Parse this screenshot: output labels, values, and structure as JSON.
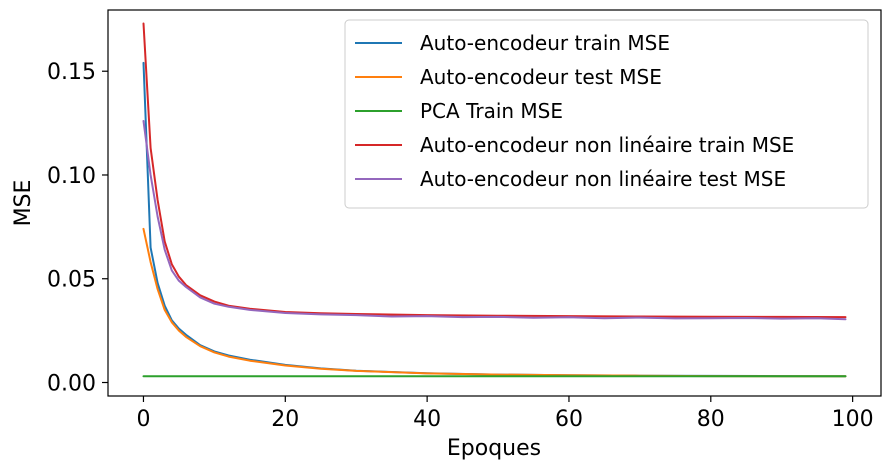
{
  "chart_data": {
    "type": "line",
    "title": "",
    "xlabel": "Epoques",
    "ylabel": "MSE",
    "xlim": [
      -5,
      104
    ],
    "ylim": [
      -0.0065,
      0.1795
    ],
    "xticks": [
      0,
      20,
      40,
      60,
      80,
      100
    ],
    "yticks": [
      0.0,
      0.05,
      0.1,
      0.15
    ],
    "xtick_labels": [
      "0",
      "20",
      "40",
      "60",
      "80",
      "100"
    ],
    "ytick_labels": [
      "0.00",
      "0.05",
      "0.10",
      "0.15"
    ],
    "grid": false,
    "legend_position": "upper right",
    "series": [
      {
        "name": "Auto-encodeur train MSE",
        "color": "#1f77b4",
        "x": [
          0,
          1,
          2,
          3,
          4,
          5,
          6,
          8,
          10,
          12,
          15,
          20,
          25,
          30,
          40,
          50,
          60,
          70,
          80,
          90,
          99
        ],
        "y": [
          0.154,
          0.065,
          0.048,
          0.037,
          0.03,
          0.026,
          0.023,
          0.018,
          0.015,
          0.013,
          0.011,
          0.0085,
          0.0068,
          0.0057,
          0.0045,
          0.0038,
          0.0035,
          0.0033,
          0.0032,
          0.0031,
          0.003
        ]
      },
      {
        "name": "Auto-encodeur test MSE",
        "color": "#ff7f0e",
        "x": [
          0,
          1,
          2,
          3,
          4,
          5,
          6,
          8,
          10,
          12,
          15,
          20,
          25,
          30,
          40,
          50,
          60,
          70,
          80,
          90,
          99
        ],
        "y": [
          0.074,
          0.058,
          0.045,
          0.035,
          0.029,
          0.025,
          0.022,
          0.0175,
          0.0145,
          0.0125,
          0.0105,
          0.0082,
          0.0066,
          0.0056,
          0.0044,
          0.0038,
          0.0035,
          0.0033,
          0.0031,
          0.003,
          0.003
        ]
      },
      {
        "name": "PCA Train MSE",
        "color": "#2ca02c",
        "x": [
          0,
          99
        ],
        "y": [
          0.003,
          0.003
        ]
      },
      {
        "name": "Auto-encodeur non linéaire train MSE",
        "color": "#d62728",
        "x": [
          0,
          1,
          2,
          3,
          4,
          5,
          6,
          8,
          10,
          12,
          15,
          20,
          25,
          30,
          40,
          50,
          60,
          70,
          80,
          90,
          99
        ],
        "y": [
          0.173,
          0.113,
          0.088,
          0.068,
          0.057,
          0.051,
          0.047,
          0.042,
          0.039,
          0.037,
          0.0355,
          0.034,
          0.0334,
          0.033,
          0.0325,
          0.0322,
          0.032,
          0.0318,
          0.0317,
          0.0316,
          0.0315
        ]
      },
      {
        "name": "Auto-encodeur non linéaire test MSE",
        "color": "#9467bd",
        "x": [
          0,
          1,
          2,
          3,
          4,
          5,
          6,
          8,
          10,
          12,
          15,
          20,
          25,
          30,
          35,
          40,
          45,
          50,
          55,
          60,
          65,
          70,
          75,
          80,
          85,
          90,
          95,
          99
        ],
        "y": [
          0.126,
          0.1,
          0.08,
          0.064,
          0.054,
          0.049,
          0.046,
          0.041,
          0.038,
          0.0365,
          0.035,
          0.0335,
          0.0328,
          0.0325,
          0.0318,
          0.032,
          0.0315,
          0.0316,
          0.0312,
          0.0314,
          0.031,
          0.0313,
          0.0309,
          0.031,
          0.0311,
          0.0308,
          0.031,
          0.0305
        ]
      }
    ]
  }
}
